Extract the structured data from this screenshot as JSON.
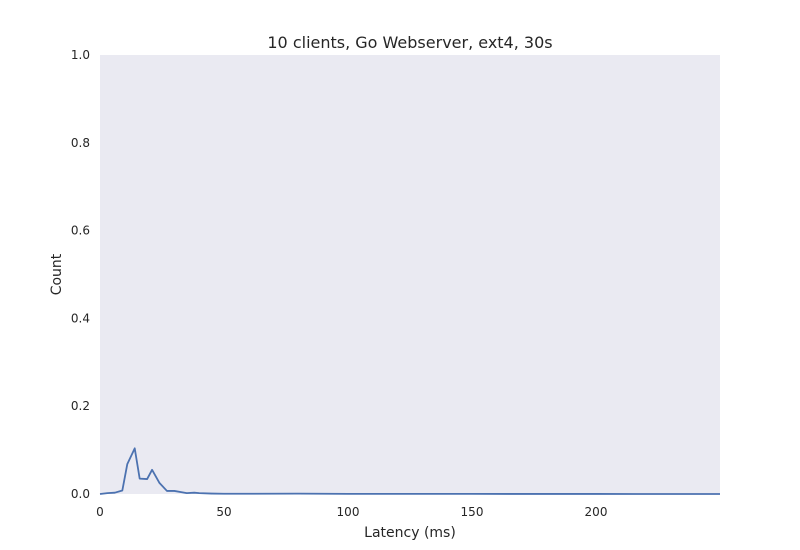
{
  "chart_data": {
    "type": "line",
    "title": "10 clients, Go Webserver, ext4, 30s",
    "xlabel": "Latency (ms)",
    "ylabel": "Count",
    "xlim": [
      0,
      250
    ],
    "ylim": [
      0,
      1.0
    ],
    "x_ticks": [
      0,
      50,
      100,
      150,
      200
    ],
    "x_tick_labels": [
      "0",
      "50",
      "100",
      "150",
      "200"
    ],
    "y_ticks": [
      0,
      0.2,
      0.4,
      0.6,
      0.8,
      1.0
    ],
    "y_tick_labels": [
      "0.0",
      "0.2",
      "0.4",
      "0.6",
      "0.8",
      "1.0"
    ],
    "grid": false,
    "legend": "none",
    "colors": {
      "plot_background": "#EAEAF2",
      "line": "#4C72B0"
    },
    "series": [
      {
        "x": [
          0,
          3,
          6,
          9,
          11,
          14,
          16,
          19,
          21,
          24,
          27,
          30,
          33,
          35,
          38,
          40,
          45,
          50,
          60,
          80,
          100,
          150,
          200,
          250
        ],
        "values": [
          0,
          0.002,
          0.003,
          0.008,
          0.068,
          0.104,
          0.035,
          0.034,
          0.055,
          0.025,
          0.007,
          0.007,
          0.004,
          0.002,
          0.003,
          0.002,
          0.001,
          0.0005,
          0.0005,
          0.0008,
          0.0003,
          0.0002,
          0.0001,
          0
        ]
      }
    ]
  }
}
